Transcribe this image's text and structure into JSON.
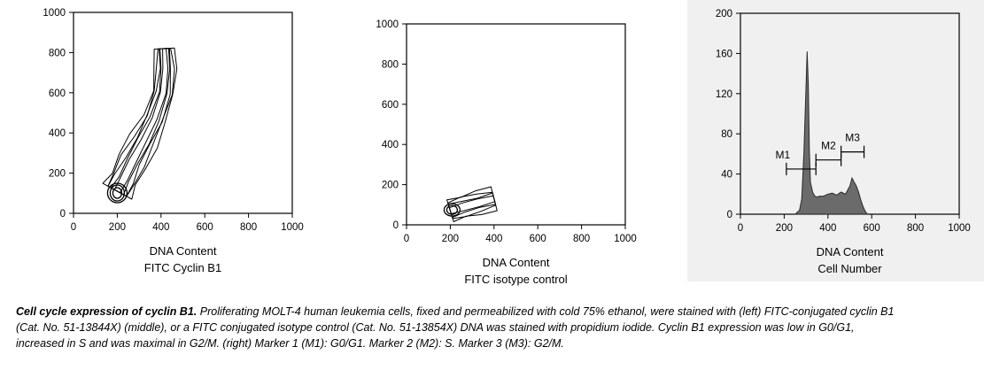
{
  "chart_data": [
    {
      "type": "contour",
      "xlabel": "DNA Content",
      "ylabel_below": "FITC Cyclin B1",
      "xlim": [
        0,
        1000
      ],
      "ylim": [
        0,
        1000
      ],
      "xticks": [
        0,
        200,
        400,
        600,
        800,
        1000
      ],
      "yticks": [
        0,
        200,
        400,
        600,
        800,
        1000
      ],
      "density_ridge": [
        {
          "x": 200,
          "y": 110
        },
        {
          "x": 230,
          "y": 170
        },
        {
          "x": 270,
          "y": 260
        },
        {
          "x": 320,
          "y": 360
        },
        {
          "x": 370,
          "y": 470
        },
        {
          "x": 410,
          "y": 600
        },
        {
          "x": 420,
          "y": 720
        },
        {
          "x": 415,
          "y": 820
        }
      ]
    },
    {
      "type": "contour",
      "xlabel": "DNA Content",
      "ylabel_below": "FITC isotype control",
      "xlim": [
        0,
        1000
      ],
      "ylim": [
        0,
        1000
      ],
      "xticks": [
        0,
        200,
        400,
        600,
        800,
        1000
      ],
      "yticks": [
        0,
        200,
        400,
        600,
        800,
        1000
      ],
      "density_ridge": [
        {
          "x": 200,
          "y": 70
        },
        {
          "x": 260,
          "y": 90
        },
        {
          "x": 330,
          "y": 110
        },
        {
          "x": 400,
          "y": 130
        }
      ]
    },
    {
      "type": "histogram",
      "xlabel": "DNA Content",
      "ylabel_below": "Cell Number",
      "xlim": [
        0,
        1000
      ],
      "ylim": [
        0,
        200
      ],
      "xticks": [
        0,
        200,
        400,
        600,
        800,
        1000
      ],
      "yticks": [
        0,
        40,
        80,
        120,
        160,
        200
      ],
      "x": [
        250,
        270,
        280,
        290,
        300,
        305,
        310,
        315,
        320,
        330,
        340,
        350,
        360,
        380,
        400,
        420,
        440,
        460,
        480,
        500,
        510,
        520,
        530,
        540,
        550,
        560,
        570,
        580
      ],
      "y": [
        0,
        4,
        15,
        60,
        128,
        162,
        130,
        65,
        32,
        22,
        18,
        17,
        18,
        18,
        20,
        21,
        19,
        22,
        20,
        28,
        36,
        32,
        28,
        22,
        14,
        8,
        3,
        0
      ],
      "markers": [
        {
          "name": "M1",
          "x_range": [
            210,
            345
          ],
          "y": 45
        },
        {
          "name": "M2",
          "x_range": [
            345,
            460
          ],
          "y": 54
        },
        {
          "name": "M3",
          "x_range": [
            460,
            565
          ],
          "y": 62
        }
      ]
    }
  ],
  "caption": {
    "title": "Cell cycle expression of cyclin B1.",
    "text": " Proliferating MOLT-4 human leukemia cells, fixed and permeabilized with cold 75% ethanol, were stained with (left) FITC-conjugated cyclin B1 (Cat. No. 51-13844X) (middle), or a FITC conjugated isotype control (Cat. No. 51-13854X) DNA was stained with propidium iodide. Cyclin B1 expression was low in G0/G1, increased in S and was maximal in G2/M. (right) Marker 1 (M1): G0/G1. Marker 2 (M2): S. Marker 3 (M3): G2/M."
  }
}
